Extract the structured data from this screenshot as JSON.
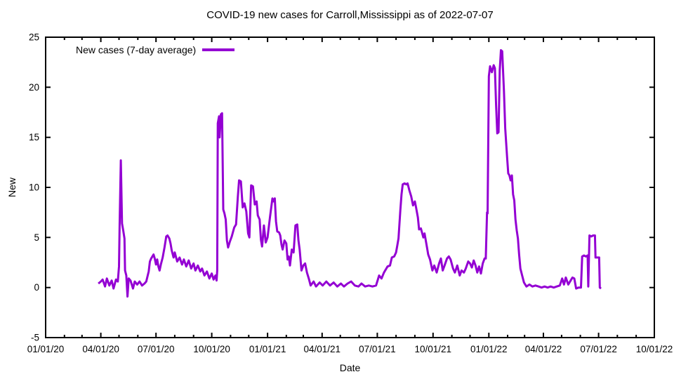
{
  "chart_data": {
    "type": "line",
    "title": "COVID-19 new cases for Carroll,Mississippi as of 2022-07-07",
    "xlabel": "Date",
    "ylabel": "New",
    "ylim": [
      -5,
      25
    ],
    "xlim": [
      "2020-01-01",
      "2022-10-01"
    ],
    "grid": false,
    "legend_position": "top-left-inside",
    "line_color": "#9400d3",
    "y_ticks": [
      -5,
      0,
      5,
      10,
      15,
      20,
      25
    ],
    "x_ticks": [
      {
        "d": "2020-01-01",
        "label": "01/01/20"
      },
      {
        "d": "2020-04-01",
        "label": "04/01/20"
      },
      {
        "d": "2020-07-01",
        "label": "07/01/20"
      },
      {
        "d": "2020-10-01",
        "label": "10/01/20"
      },
      {
        "d": "2021-01-01",
        "label": "01/01/21"
      },
      {
        "d": "2021-04-01",
        "label": "04/01/21"
      },
      {
        "d": "2021-07-01",
        "label": "07/01/21"
      },
      {
        "d": "2021-10-01",
        "label": "10/01/21"
      },
      {
        "d": "2022-01-01",
        "label": "01/01/22"
      },
      {
        "d": "2022-04-01",
        "label": "04/01/22"
      },
      {
        "d": "2022-07-01",
        "label": "07/01/22"
      },
      {
        "d": "2022-10-01",
        "label": "10/01/22"
      }
    ],
    "series": [
      {
        "name": "New cases (7-day average)",
        "color": "#9400d3",
        "points": [
          [
            "2020-03-28",
            0.4
          ],
          [
            "2020-04-01",
            0.6
          ],
          [
            "2020-04-04",
            0.8
          ],
          [
            "2020-04-08",
            0.1
          ],
          [
            "2020-04-11",
            0.9
          ],
          [
            "2020-04-15",
            0.2
          ],
          [
            "2020-04-19",
            0.7
          ],
          [
            "2020-04-22",
            -0.1
          ],
          [
            "2020-04-26",
            0.8
          ],
          [
            "2020-04-29",
            0.6
          ],
          [
            "2020-05-01",
            2.1
          ],
          [
            "2020-05-02",
            6.3
          ],
          [
            "2020-05-04",
            12.7
          ],
          [
            "2020-05-06",
            6.4
          ],
          [
            "2020-05-08",
            5.7
          ],
          [
            "2020-05-10",
            4.9
          ],
          [
            "2020-05-11",
            1.7
          ],
          [
            "2020-05-13",
            1.2
          ],
          [
            "2020-05-15",
            -0.9
          ],
          [
            "2020-05-17",
            0.9
          ],
          [
            "2020-05-20",
            0.7
          ],
          [
            "2020-05-24",
            -0.1
          ],
          [
            "2020-05-27",
            0.6
          ],
          [
            "2020-05-31",
            0.3
          ],
          [
            "2020-06-04",
            0.6
          ],
          [
            "2020-06-08",
            0.2
          ],
          [
            "2020-06-12",
            0.4
          ],
          [
            "2020-06-15",
            0.6
          ],
          [
            "2020-06-19",
            1.6
          ],
          [
            "2020-06-21",
            2.6
          ],
          [
            "2020-06-23",
            2.9
          ],
          [
            "2020-06-27",
            3.3
          ],
          [
            "2020-06-29",
            2.9
          ],
          [
            "2020-07-01",
            2.3
          ],
          [
            "2020-07-03",
            2.8
          ],
          [
            "2020-07-05",
            2.1
          ],
          [
            "2020-07-07",
            1.7
          ],
          [
            "2020-07-09",
            2.3
          ],
          [
            "2020-07-12",
            3.0
          ],
          [
            "2020-07-15",
            4.0
          ],
          [
            "2020-07-18",
            5.1
          ],
          [
            "2020-07-20",
            5.2
          ],
          [
            "2020-07-23",
            4.9
          ],
          [
            "2020-07-25",
            4.4
          ],
          [
            "2020-07-27",
            3.7
          ],
          [
            "2020-07-30",
            3.0
          ],
          [
            "2020-08-01",
            3.5
          ],
          [
            "2020-08-05",
            2.6
          ],
          [
            "2020-08-09",
            3.0
          ],
          [
            "2020-08-13",
            2.3
          ],
          [
            "2020-08-16",
            2.8
          ],
          [
            "2020-08-20",
            2.1
          ],
          [
            "2020-08-24",
            2.7
          ],
          [
            "2020-08-28",
            1.9
          ],
          [
            "2020-09-01",
            2.4
          ],
          [
            "2020-09-04",
            1.7
          ],
          [
            "2020-09-08",
            2.2
          ],
          [
            "2020-09-12",
            1.6
          ],
          [
            "2020-09-15",
            1.9
          ],
          [
            "2020-09-19",
            1.2
          ],
          [
            "2020-09-23",
            1.6
          ],
          [
            "2020-09-27",
            0.9
          ],
          [
            "2020-10-01",
            1.4
          ],
          [
            "2020-10-04",
            0.8
          ],
          [
            "2020-10-07",
            1.2
          ],
          [
            "2020-10-09",
            0.7
          ],
          [
            "2020-10-10",
            1.7
          ],
          [
            "2020-10-11",
            16.4
          ],
          [
            "2020-10-13",
            17.1
          ],
          [
            "2020-10-14",
            15.0
          ],
          [
            "2020-10-16",
            17.3
          ],
          [
            "2020-10-18",
            17.4
          ],
          [
            "2020-10-20",
            7.8
          ],
          [
            "2020-10-22",
            7.4
          ],
          [
            "2020-10-24",
            6.8
          ],
          [
            "2020-10-26",
            4.7
          ],
          [
            "2020-10-28",
            4.0
          ],
          [
            "2020-10-31",
            4.6
          ],
          [
            "2020-11-03",
            5.1
          ],
          [
            "2020-11-07",
            6.0
          ],
          [
            "2020-11-10",
            6.3
          ],
          [
            "2020-11-13",
            9.0
          ],
          [
            "2020-11-15",
            10.7
          ],
          [
            "2020-11-18",
            10.6
          ],
          [
            "2020-11-21",
            8.0
          ],
          [
            "2020-11-24",
            8.4
          ],
          [
            "2020-11-27",
            7.6
          ],
          [
            "2020-11-30",
            5.4
          ],
          [
            "2020-12-02",
            5.0
          ],
          [
            "2020-12-05",
            10.2
          ],
          [
            "2020-12-08",
            10.1
          ],
          [
            "2020-12-11",
            8.3
          ],
          [
            "2020-12-14",
            8.6
          ],
          [
            "2020-12-16",
            7.2
          ],
          [
            "2020-12-19",
            6.8
          ],
          [
            "2020-12-21",
            4.8
          ],
          [
            "2020-12-23",
            4.1
          ],
          [
            "2020-12-26",
            6.2
          ],
          [
            "2020-12-29",
            4.5
          ],
          [
            "2021-01-01",
            5.0
          ],
          [
            "2021-01-05",
            7.0
          ],
          [
            "2021-01-09",
            8.9
          ],
          [
            "2021-01-11",
            8.6
          ],
          [
            "2021-01-13",
            8.9
          ],
          [
            "2021-01-15",
            6.6
          ],
          [
            "2021-01-17",
            5.6
          ],
          [
            "2021-01-20",
            5.5
          ],
          [
            "2021-01-22",
            5.2
          ],
          [
            "2021-01-24",
            4.3
          ],
          [
            "2021-01-26",
            3.8
          ],
          [
            "2021-01-29",
            4.7
          ],
          [
            "2021-02-01",
            4.4
          ],
          [
            "2021-02-03",
            2.8
          ],
          [
            "2021-02-05",
            3.1
          ],
          [
            "2021-02-07",
            2.2
          ],
          [
            "2021-02-10",
            3.8
          ],
          [
            "2021-02-13",
            3.5
          ],
          [
            "2021-02-16",
            6.2
          ],
          [
            "2021-02-19",
            6.3
          ],
          [
            "2021-02-21",
            4.7
          ],
          [
            "2021-02-23",
            3.8
          ],
          [
            "2021-02-26",
            1.7
          ],
          [
            "2021-03-01",
            2.2
          ],
          [
            "2021-03-04",
            2.4
          ],
          [
            "2021-03-07",
            1.5
          ],
          [
            "2021-03-10",
            0.9
          ],
          [
            "2021-03-13",
            0.2
          ],
          [
            "2021-03-18",
            0.6
          ],
          [
            "2021-03-22",
            0.1
          ],
          [
            "2021-03-28",
            0.5
          ],
          [
            "2021-04-02",
            0.2
          ],
          [
            "2021-04-08",
            0.6
          ],
          [
            "2021-04-14",
            0.2
          ],
          [
            "2021-04-20",
            0.5
          ],
          [
            "2021-04-26",
            0.1
          ],
          [
            "2021-05-02",
            0.4
          ],
          [
            "2021-05-07",
            0.1
          ],
          [
            "2021-05-13",
            0.4
          ],
          [
            "2021-05-19",
            0.6
          ],
          [
            "2021-05-25",
            0.2
          ],
          [
            "2021-05-31",
            0.1
          ],
          [
            "2021-06-05",
            0.4
          ],
          [
            "2021-06-11",
            0.1
          ],
          [
            "2021-06-17",
            0.2
          ],
          [
            "2021-06-23",
            0.1
          ],
          [
            "2021-06-29",
            0.2
          ],
          [
            "2021-07-04",
            1.2
          ],
          [
            "2021-07-08",
            0.9
          ],
          [
            "2021-07-12",
            1.5
          ],
          [
            "2021-07-18",
            2.1
          ],
          [
            "2021-07-22",
            2.2
          ],
          [
            "2021-07-25",
            3.0
          ],
          [
            "2021-07-29",
            3.1
          ],
          [
            "2021-08-01",
            3.5
          ],
          [
            "2021-08-03",
            4.2
          ],
          [
            "2021-08-05",
            4.9
          ],
          [
            "2021-08-08",
            7.7
          ],
          [
            "2021-08-10",
            9.3
          ],
          [
            "2021-08-12",
            10.3
          ],
          [
            "2021-08-15",
            10.4
          ],
          [
            "2021-08-18",
            10.3
          ],
          [
            "2021-08-20",
            10.4
          ],
          [
            "2021-08-23",
            9.7
          ],
          [
            "2021-08-26",
            9.1
          ],
          [
            "2021-08-29",
            8.2
          ],
          [
            "2021-09-01",
            8.6
          ],
          [
            "2021-09-03",
            8.0
          ],
          [
            "2021-09-06",
            7.0
          ],
          [
            "2021-09-08",
            5.8
          ],
          [
            "2021-09-11",
            5.9
          ],
          [
            "2021-09-15",
            5.0
          ],
          [
            "2021-09-17",
            5.4
          ],
          [
            "2021-09-21",
            4.0
          ],
          [
            "2021-09-23",
            3.3
          ],
          [
            "2021-09-26",
            2.8
          ],
          [
            "2021-09-30",
            1.7
          ],
          [
            "2021-10-03",
            2.2
          ],
          [
            "2021-10-07",
            1.5
          ],
          [
            "2021-10-11",
            2.4
          ],
          [
            "2021-10-14",
            2.9
          ],
          [
            "2021-10-17",
            1.7
          ],
          [
            "2021-10-20",
            2.2
          ],
          [
            "2021-10-24",
            2.9
          ],
          [
            "2021-10-27",
            3.1
          ],
          [
            "2021-10-30",
            2.8
          ],
          [
            "2021-11-03",
            1.9
          ],
          [
            "2021-11-06",
            1.5
          ],
          [
            "2021-11-10",
            2.2
          ],
          [
            "2021-11-14",
            1.2
          ],
          [
            "2021-11-17",
            1.7
          ],
          [
            "2021-11-21",
            1.5
          ],
          [
            "2021-11-24",
            1.9
          ],
          [
            "2021-11-28",
            2.6
          ],
          [
            "2021-12-01",
            2.4
          ],
          [
            "2021-12-04",
            2.0
          ],
          [
            "2021-12-07",
            2.7
          ],
          [
            "2021-12-10",
            2.2
          ],
          [
            "2021-12-13",
            1.5
          ],
          [
            "2021-12-16",
            2.1
          ],
          [
            "2021-12-19",
            1.4
          ],
          [
            "2021-12-22",
            2.4
          ],
          [
            "2021-12-25",
            2.9
          ],
          [
            "2021-12-27",
            2.9
          ],
          [
            "2021-12-29",
            7.5
          ],
          [
            "2021-12-30",
            7.4
          ],
          [
            "2022-01-01",
            21.1
          ],
          [
            "2022-01-03",
            22.1
          ],
          [
            "2022-01-06",
            21.5
          ],
          [
            "2022-01-09",
            22.2
          ],
          [
            "2022-01-11",
            21.9
          ],
          [
            "2022-01-13",
            18.2
          ],
          [
            "2022-01-15",
            15.4
          ],
          [
            "2022-01-17",
            15.5
          ],
          [
            "2022-01-19",
            21.7
          ],
          [
            "2022-01-21",
            23.7
          ],
          [
            "2022-01-23",
            23.6
          ],
          [
            "2022-01-26",
            19.6
          ],
          [
            "2022-01-28",
            15.9
          ],
          [
            "2022-01-31",
            13.1
          ],
          [
            "2022-02-02",
            11.4
          ],
          [
            "2022-02-04",
            11.2
          ],
          [
            "2022-02-06",
            10.7
          ],
          [
            "2022-02-08",
            11.2
          ],
          [
            "2022-02-10",
            9.3
          ],
          [
            "2022-02-12",
            8.7
          ],
          [
            "2022-02-14",
            6.8
          ],
          [
            "2022-02-16",
            5.7
          ],
          [
            "2022-02-18",
            4.9
          ],
          [
            "2022-02-20",
            3.3
          ],
          [
            "2022-02-22",
            1.9
          ],
          [
            "2022-02-25",
            1.2
          ],
          [
            "2022-02-28",
            0.5
          ],
          [
            "2022-03-04",
            0.1
          ],
          [
            "2022-03-09",
            0.3
          ],
          [
            "2022-03-14",
            0.1
          ],
          [
            "2022-03-19",
            0.2
          ],
          [
            "2022-03-24",
            0.1
          ],
          [
            "2022-03-29",
            0.0
          ],
          [
            "2022-04-03",
            0.1
          ],
          [
            "2022-04-08",
            0.0
          ],
          [
            "2022-04-13",
            0.1
          ],
          [
            "2022-04-18",
            0.0
          ],
          [
            "2022-04-23",
            0.1
          ],
          [
            "2022-04-28",
            0.2
          ],
          [
            "2022-05-02",
            0.9
          ],
          [
            "2022-05-05",
            0.3
          ],
          [
            "2022-05-08",
            1.0
          ],
          [
            "2022-05-12",
            0.3
          ],
          [
            "2022-05-16",
            0.7
          ],
          [
            "2022-05-19",
            1.0
          ],
          [
            "2022-05-22",
            0.9
          ],
          [
            "2022-05-25",
            -0.1
          ],
          [
            "2022-05-29",
            0.0
          ],
          [
            "2022-06-02",
            0.0
          ],
          [
            "2022-06-04",
            3.1
          ],
          [
            "2022-06-07",
            3.2
          ],
          [
            "2022-06-10",
            3.1
          ],
          [
            "2022-06-13",
            3.2
          ],
          [
            "2022-06-14",
            0.1
          ],
          [
            "2022-06-16",
            5.2
          ],
          [
            "2022-06-19",
            5.1
          ],
          [
            "2022-06-22",
            5.2
          ],
          [
            "2022-06-25",
            5.2
          ],
          [
            "2022-06-26",
            3.0
          ],
          [
            "2022-06-29",
            3.0
          ],
          [
            "2022-07-02",
            3.0
          ],
          [
            "2022-07-03",
            0.0
          ],
          [
            "2022-07-05",
            -0.1
          ]
        ]
      }
    ]
  }
}
